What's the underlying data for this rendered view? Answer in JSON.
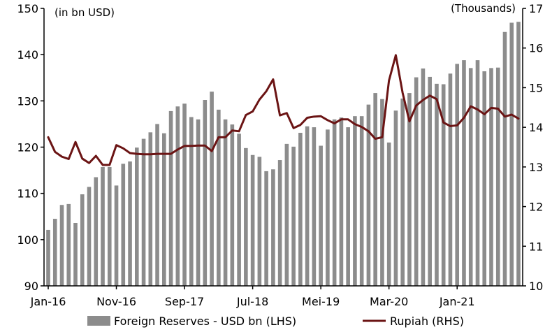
{
  "chart_data": {
    "type": "bar+line",
    "left_unit_label": "(in bn USD)",
    "right_unit_label": "(Thousands)",
    "x_tick_labels": [
      "Jan-16",
      "Nov-16",
      "Sep-17",
      "Jul-18",
      "Mei-19",
      "Mar-20",
      "Jan-21"
    ],
    "y_left": {
      "min": 90,
      "max": 150,
      "ticks": [
        90,
        100,
        110,
        120,
        130,
        140,
        150
      ]
    },
    "y_right": {
      "min": 10,
      "max": 17,
      "ticks": [
        10,
        11,
        12,
        13,
        14,
        15,
        16,
        17
      ]
    },
    "grid": false,
    "legend_position": "bottom",
    "colors": {
      "bars": "#8c8c8c",
      "line": "#6b1414"
    },
    "series": [
      {
        "name": "Foreign Reserves - USD bn (LHS)",
        "axis": "left",
        "kind": "bar",
        "values": [
          102.1,
          104.5,
          107.5,
          107.7,
          103.6,
          109.8,
          111.4,
          113.5,
          115.7,
          115.7,
          111.7,
          116.4,
          116.9,
          119.9,
          121.8,
          123.2,
          125.0,
          123.0,
          127.8,
          128.8,
          129.4,
          126.5,
          126.0,
          130.2,
          132.0,
          128.1,
          126.0,
          124.9,
          122.9,
          119.8,
          118.3,
          117.9,
          114.8,
          115.2,
          117.2,
          120.7,
          120.1,
          123.1,
          124.5,
          124.3,
          120.3,
          123.8,
          126.0,
          126.4,
          124.3,
          126.7,
          126.7,
          129.2,
          131.7,
          130.4,
          121.0,
          127.9,
          130.5,
          131.7,
          135.1,
          137.0,
          135.2,
          133.7,
          133.6,
          135.9,
          138.0,
          138.8,
          137.1,
          138.8,
          136.4,
          137.1,
          137.2,
          144.9,
          146.9,
          147.1
        ]
      },
      {
        "name": "Rupiah (RHS)",
        "axis": "right",
        "kind": "line",
        "values": [
          13.75,
          13.38,
          13.26,
          13.2,
          13.63,
          13.21,
          13.1,
          13.28,
          13.05,
          13.05,
          13.55,
          13.47,
          13.35,
          13.33,
          13.32,
          13.32,
          13.33,
          13.33,
          13.33,
          13.44,
          13.53,
          13.53,
          13.54,
          13.54,
          13.4,
          13.75,
          13.75,
          13.92,
          13.9,
          14.31,
          14.4,
          14.7,
          14.91,
          15.21,
          14.3,
          14.36,
          13.98,
          14.06,
          14.24,
          14.27,
          14.28,
          14.18,
          14.1,
          14.2,
          14.2,
          14.08,
          14.01,
          13.9,
          13.71,
          13.75,
          15.18,
          15.82,
          14.87,
          14.15,
          14.55,
          14.69,
          14.8,
          14.71,
          14.12,
          14.03,
          14.05,
          14.24,
          14.53,
          14.45,
          14.33,
          14.49,
          14.47,
          14.27,
          14.32,
          14.22
        ]
      }
    ]
  }
}
